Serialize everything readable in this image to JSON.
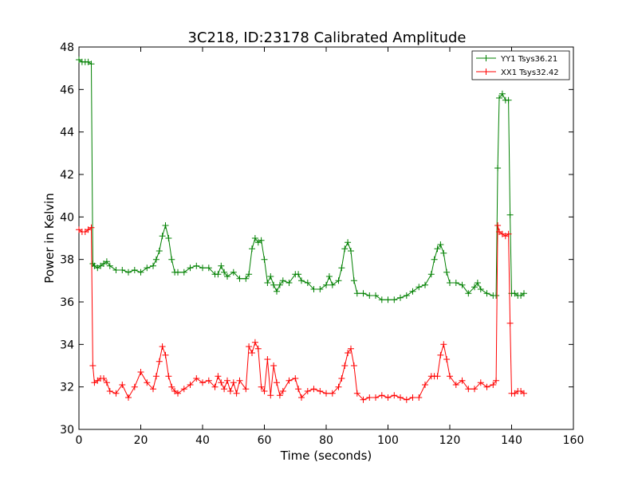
{
  "chart_data": {
    "type": "line",
    "title": "3C218, ID:23178 Calibrated Amplitude",
    "xlabel": "Time (seconds)",
    "ylabel": "Power in Kelvin",
    "xlim": [
      0,
      160
    ],
    "ylim": [
      30,
      48
    ],
    "xticks": [
      "0",
      "20",
      "40",
      "60",
      "80",
      "100",
      "120",
      "140",
      "160"
    ],
    "yticks": [
      "30",
      "32",
      "34",
      "36",
      "38",
      "40",
      "42",
      "44",
      "46",
      "48"
    ],
    "grid": false,
    "legend_position": "top-right",
    "series": [
      {
        "name": "YY1 Tsys36.21",
        "color": "#008000",
        "x": [
          0,
          1,
          2,
          3,
          4,
          4.5,
          5,
          6,
          7,
          8,
          9,
          10,
          12,
          14,
          16,
          18,
          20,
          22,
          24,
          25,
          26,
          27,
          28,
          29,
          30,
          31,
          32,
          34,
          36,
          38,
          40,
          42,
          44,
          45,
          46,
          47,
          48,
          50,
          52,
          54,
          55,
          56,
          57,
          58,
          59,
          60,
          61,
          62,
          63,
          64,
          65,
          66,
          68,
          70,
          71,
          72,
          74,
          76,
          78,
          80,
          81,
          82,
          84,
          85,
          86,
          87,
          88,
          89,
          90,
          92,
          94,
          96,
          98,
          100,
          102,
          104,
          106,
          108,
          110,
          112,
          114,
          115,
          116,
          117,
          118,
          119,
          120,
          122,
          124,
          126,
          128,
          129,
          130,
          132,
          134,
          135,
          135.5,
          136,
          137,
          138,
          139,
          139.5,
          140,
          141,
          142,
          143,
          144
        ],
        "values": [
          47.4,
          47.3,
          47.3,
          47.3,
          47.2,
          37.8,
          37.7,
          37.6,
          37.7,
          37.8,
          37.9,
          37.7,
          37.5,
          37.5,
          37.4,
          37.5,
          37.4,
          37.6,
          37.7,
          38.0,
          38.4,
          39.1,
          39.6,
          39.0,
          38.0,
          37.4,
          37.4,
          37.4,
          37.6,
          37.7,
          37.6,
          37.6,
          37.3,
          37.3,
          37.7,
          37.4,
          37.2,
          37.4,
          37.1,
          37.1,
          37.3,
          38.5,
          39.0,
          38.8,
          38.9,
          38.0,
          36.9,
          37.2,
          36.8,
          36.5,
          36.8,
          37.0,
          36.9,
          37.3,
          37.3,
          37.0,
          36.9,
          36.6,
          36.6,
          36.8,
          37.2,
          36.8,
          37.0,
          37.6,
          38.5,
          38.8,
          38.4,
          37.0,
          36.4,
          36.4,
          36.3,
          36.3,
          36.1,
          36.1,
          36.1,
          36.2,
          36.3,
          36.5,
          36.7,
          36.8,
          37.3,
          38.0,
          38.5,
          38.7,
          38.3,
          37.4,
          36.9,
          36.9,
          36.8,
          36.4,
          36.7,
          36.9,
          36.6,
          36.4,
          36.3,
          36.3,
          42.3,
          45.6,
          45.8,
          45.5,
          45.5,
          40.1,
          36.4,
          36.4,
          36.3,
          36.3,
          36.4
        ]
      },
      {
        "name": "XX1 Tsys32.42",
        "color": "#ff0000",
        "x": [
          0,
          1,
          2,
          3,
          4,
          4.5,
          5,
          6,
          7,
          8,
          9,
          10,
          12,
          14,
          16,
          18,
          20,
          22,
          24,
          25,
          26,
          27,
          28,
          29,
          30,
          31,
          32,
          34,
          36,
          38,
          40,
          42,
          44,
          45,
          46,
          47,
          48,
          49,
          50,
          51,
          52,
          54,
          55,
          56,
          57,
          58,
          59,
          60,
          61,
          62,
          63,
          64,
          65,
          66,
          68,
          70,
          71,
          72,
          74,
          76,
          78,
          80,
          82,
          84,
          85,
          86,
          87,
          88,
          89,
          90,
          92,
          94,
          96,
          98,
          100,
          102,
          104,
          106,
          108,
          110,
          112,
          114,
          115,
          116,
          117,
          118,
          119,
          120,
          122,
          124,
          126,
          128,
          130,
          132,
          134,
          135,
          135.5,
          136,
          137,
          138,
          139,
          139.5,
          140,
          141,
          142,
          143,
          144
        ],
        "values": [
          39.4,
          39.3,
          39.3,
          39.4,
          39.5,
          33.0,
          32.2,
          32.3,
          32.4,
          32.4,
          32.2,
          31.8,
          31.7,
          32.1,
          31.5,
          32.0,
          32.7,
          32.2,
          31.9,
          32.5,
          33.2,
          33.9,
          33.5,
          32.5,
          32.0,
          31.8,
          31.7,
          31.9,
          32.1,
          32.4,
          32.2,
          32.3,
          32.0,
          32.5,
          32.2,
          31.9,
          32.3,
          31.8,
          32.2,
          31.7,
          32.3,
          31.9,
          33.9,
          33.6,
          34.1,
          33.8,
          32.0,
          31.8,
          33.3,
          31.6,
          33.0,
          32.2,
          31.6,
          31.8,
          32.3,
          32.4,
          31.9,
          31.5,
          31.8,
          31.9,
          31.8,
          31.7,
          31.7,
          32.0,
          32.4,
          33.0,
          33.6,
          33.8,
          33.0,
          31.7,
          31.4,
          31.5,
          31.5,
          31.6,
          31.5,
          31.6,
          31.5,
          31.4,
          31.5,
          31.5,
          32.1,
          32.5,
          32.5,
          32.5,
          33.5,
          34.0,
          33.3,
          32.5,
          32.1,
          32.3,
          31.9,
          31.9,
          32.2,
          32.0,
          32.1,
          32.3,
          39.6,
          39.3,
          39.2,
          39.1,
          39.2,
          35.0,
          31.7,
          31.7,
          31.8,
          31.8,
          31.7
        ]
      }
    ]
  }
}
